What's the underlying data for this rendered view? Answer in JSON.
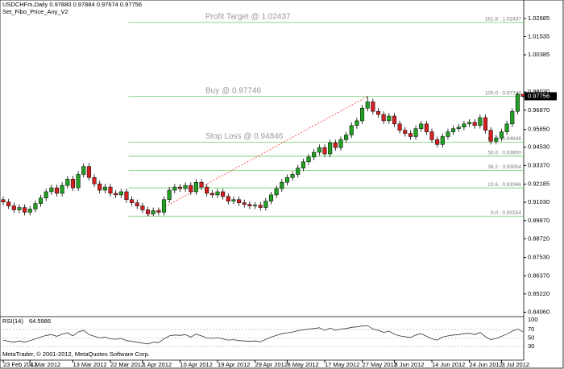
{
  "chart_data": {
    "type": "candlestick",
    "title": "USDCHFm,Daily  0.97880 0.97884 0.97674 0.97756",
    "subtitle": "Set_Fibo_Price_Any_V2",
    "copyright": "MetaTrader, © 2001-2012, MetaQuotes Software Corp.",
    "colors": {
      "up": "#22a022",
      "down": "#d42020",
      "fib": "#66cc66",
      "anchor": "#ff3030"
    },
    "open": [
      0.912,
      0.9105,
      0.908,
      0.9055,
      0.907,
      0.904,
      0.906,
      0.9095,
      0.913,
      0.917,
      0.9195,
      0.916,
      0.921,
      0.925,
      0.9195,
      0.928,
      0.933,
      0.926,
      0.922,
      0.918,
      0.92,
      0.916,
      0.915,
      0.917,
      0.912,
      0.91,
      0.908,
      0.9055,
      0.903,
      0.905,
      0.904,
      0.912,
      0.918,
      0.92,
      0.919,
      0.921,
      0.917,
      0.923,
      0.92,
      0.916,
      0.915,
      0.917,
      0.914,
      0.911,
      0.912,
      0.91,
      0.909,
      0.908,
      0.9085,
      0.907,
      0.911,
      0.915,
      0.919,
      0.923,
      0.926,
      0.928,
      0.932,
      0.936,
      0.939,
      0.942,
      0.945,
      0.941,
      0.948,
      0.945,
      0.95,
      0.953,
      0.959,
      0.962,
      0.97,
      0.974,
      0.968,
      0.966,
      0.962,
      0.965,
      0.96,
      0.956,
      0.954,
      0.952,
      0.957,
      0.96,
      0.955,
      0.95,
      0.947,
      0.952,
      0.955,
      0.957,
      0.958,
      0.96,
      0.961,
      0.959,
      0.964,
      0.956,
      0.949,
      0.951,
      0.955,
      0.96,
      0.968,
      0.9788
    ],
    "high": [
      0.914,
      0.9125,
      0.91,
      0.909,
      0.909,
      0.908,
      0.9115,
      0.915,
      0.919,
      0.9215,
      0.9215,
      0.923,
      0.927,
      0.927,
      0.93,
      0.935,
      0.935,
      0.928,
      0.924,
      0.922,
      0.922,
      0.918,
      0.919,
      0.919,
      0.914,
      0.912,
      0.91,
      0.9075,
      0.907,
      0.907,
      0.914,
      0.92,
      0.922,
      0.922,
      0.923,
      0.923,
      0.925,
      0.925,
      0.922,
      0.918,
      0.919,
      0.919,
      0.916,
      0.914,
      0.914,
      0.912,
      0.911,
      0.9105,
      0.9105,
      0.913,
      0.917,
      0.921,
      0.925,
      0.928,
      0.93,
      0.934,
      0.938,
      0.941,
      0.944,
      0.947,
      0.947,
      0.95,
      0.95,
      0.952,
      0.955,
      0.961,
      0.964,
      0.972,
      0.9775,
      0.976,
      0.97,
      0.968,
      0.967,
      0.967,
      0.962,
      0.958,
      0.956,
      0.959,
      0.962,
      0.962,
      0.957,
      0.952,
      0.954,
      0.957,
      0.959,
      0.96,
      0.962,
      0.963,
      0.963,
      0.966,
      0.966,
      0.958,
      0.953,
      0.957,
      0.962,
      0.97,
      0.98,
      0.97884
    ],
    "low": [
      0.9085,
      0.906,
      0.9035,
      0.9035,
      0.902,
      0.902,
      0.904,
      0.9075,
      0.911,
      0.915,
      0.914,
      0.914,
      0.919,
      0.9175,
      0.9175,
      0.926,
      0.924,
      0.92,
      0.916,
      0.916,
      0.914,
      0.913,
      0.913,
      0.91,
      0.908,
      0.906,
      0.9035,
      0.9015,
      0.9015,
      0.902,
      0.902,
      0.91,
      0.916,
      0.917,
      0.917,
      0.915,
      0.915,
      0.918,
      0.914,
      0.913,
      0.913,
      0.912,
      0.909,
      0.909,
      0.908,
      0.907,
      0.906,
      0.906,
      0.905,
      0.905,
      0.909,
      0.913,
      0.917,
      0.921,
      0.924,
      0.926,
      0.93,
      0.934,
      0.937,
      0.94,
      0.939,
      0.939,
      0.943,
      0.943,
      0.948,
      0.951,
      0.957,
      0.96,
      0.968,
      0.966,
      0.964,
      0.96,
      0.96,
      0.958,
      0.954,
      0.952,
      0.95,
      0.95,
      0.955,
      0.953,
      0.948,
      0.945,
      0.945,
      0.95,
      0.953,
      0.955,
      0.956,
      0.958,
      0.957,
      0.957,
      0.954,
      0.947,
      0.947,
      0.949,
      0.953,
      0.958,
      0.966,
      0.97674
    ],
    "close": [
      0.9105,
      0.908,
      0.9055,
      0.907,
      0.904,
      0.906,
      0.9095,
      0.913,
      0.917,
      0.9195,
      0.916,
      0.921,
      0.925,
      0.9195,
      0.928,
      0.933,
      0.926,
      0.922,
      0.918,
      0.92,
      0.916,
      0.915,
      0.917,
      0.912,
      0.91,
      0.908,
      0.9055,
      0.903,
      0.905,
      0.904,
      0.912,
      0.918,
      0.92,
      0.919,
      0.921,
      0.917,
      0.923,
      0.92,
      0.916,
      0.915,
      0.917,
      0.914,
      0.911,
      0.912,
      0.91,
      0.909,
      0.908,
      0.9085,
      0.907,
      0.911,
      0.915,
      0.919,
      0.923,
      0.926,
      0.928,
      0.932,
      0.936,
      0.939,
      0.942,
      0.945,
      0.941,
      0.948,
      0.945,
      0.95,
      0.953,
      0.959,
      0.962,
      0.97,
      0.974,
      0.968,
      0.966,
      0.962,
      0.965,
      0.96,
      0.956,
      0.954,
      0.952,
      0.957,
      0.96,
      0.955,
      0.95,
      0.947,
      0.952,
      0.955,
      0.957,
      0.958,
      0.96,
      0.961,
      0.959,
      0.964,
      0.956,
      0.949,
      0.951,
      0.955,
      0.96,
      0.968,
      0.9788,
      0.97756
    ],
    "ylim": [
      0.8383,
      1.0386
    ],
    "yticks": [
      1.02685,
      1.01535,
      1.00385,
      {
        "value": 0.9803,
        "label": "0.98030"
      },
      {
        "value": 0.9687,
        "label": "0.96870"
      },
      {
        "value": 0.9565,
        "label": "0.95650"
      },
      {
        "value": 0.9453,
        "label": "0.94530"
      },
      {
        "value": 0.9337,
        "label": "0.93370"
      },
      0.92185,
      {
        "value": 0.9103,
        "label": "0.91030"
      },
      {
        "value": 0.8987,
        "label": "0.89870"
      },
      {
        "value": 0.8872,
        "label": "0.88720"
      },
      {
        "value": 0.8753,
        "label": "0.87530"
      },
      {
        "value": 0.8637,
        "label": "0.86370"
      },
      {
        "value": 0.8522,
        "label": "0.85220"
      },
      {
        "value": 0.8406,
        "label": "0.84060"
      }
    ],
    "xticks": [
      {
        "value": 0,
        "label": "23 Feb 2012"
      },
      {
        "value": 5,
        "label": "4 Mar 2012"
      },
      {
        "value": 13,
        "label": "13 Mar 2012"
      },
      {
        "value": 20,
        "label": "22 Mar 2012"
      },
      {
        "value": 26,
        "label": "1 Apr 2012"
      },
      {
        "value": 33,
        "label": "10 Apr 2012"
      },
      {
        "value": 40,
        "label": "19 Apr 2012"
      },
      {
        "value": 47,
        "label": "29 Apr 2012"
      },
      {
        "value": 53,
        "label": "8 May 2012"
      },
      {
        "value": 60,
        "label": "17 May 2012"
      },
      {
        "value": 67,
        "label": "27 May 2012"
      },
      {
        "value": 73,
        "label": "5 Jun 2012"
      },
      {
        "value": 80,
        "label": "14 Jun 2012"
      },
      {
        "value": 87,
        "label": "24 Jun 2012"
      },
      {
        "value": 93,
        "label": "3 Jul 2012"
      }
    ],
    "fib_anchor": {
      "x": [
        27,
        68
      ],
      "y": [
        0.90154,
        0.97746
      ]
    },
    "fib_levels": [
      {
        "value": 1.02437,
        "label": "161.8 : 1.02437"
      },
      {
        "value": 0.97746,
        "label": "100.0 : 0.97746"
      },
      {
        "value": 0.94846,
        "label": "61.8 : 0.94846"
      },
      {
        "value": 0.9395,
        "label": "50.0 : 0.93950"
      },
      {
        "value": 0.93054,
        "label": "38.2 : 0.93054"
      },
      {
        "value": 0.91946,
        "label": "23.6 : 0.91946"
      },
      {
        "value": 0.90154,
        "label": "0.0 : 0.90154"
      }
    ],
    "annotations": [
      {
        "text": "Profit Target @ 1.02437",
        "value": 1.02437
      },
      {
        "text": "Buy @ 0.97746",
        "value": 0.97746
      },
      {
        "text": "Stop Loss @ 0.94846",
        "value": 0.94846
      }
    ],
    "rsi": {
      "name": "RSI(14)",
      "color": "#333333",
      "ylim": [
        0,
        100
      ],
      "yticks": [
        100,
        70,
        50,
        30
      ],
      "values": [
        45,
        42,
        40,
        43,
        40,
        44,
        48,
        52,
        56,
        58,
        54,
        59,
        62,
        55,
        64,
        68,
        58,
        54,
        50,
        52,
        48,
        47,
        49,
        44,
        42,
        40,
        38,
        36,
        40,
        39,
        48,
        55,
        57,
        56,
        58,
        52,
        59,
        55,
        50,
        49,
        51,
        48,
        45,
        46,
        44,
        43,
        42,
        43,
        41,
        47,
        52,
        56,
        60,
        62,
        64,
        67,
        69,
        71,
        72,
        74,
        68,
        73,
        68,
        71,
        72,
        75,
        76,
        78,
        79,
        71,
        68,
        63,
        66,
        59,
        55,
        53,
        51,
        57,
        60,
        54,
        48,
        45,
        52,
        55,
        57,
        58,
        60,
        61,
        58,
        63,
        53,
        46,
        49,
        54,
        59,
        66,
        71,
        64.5986
      ]
    }
  }
}
